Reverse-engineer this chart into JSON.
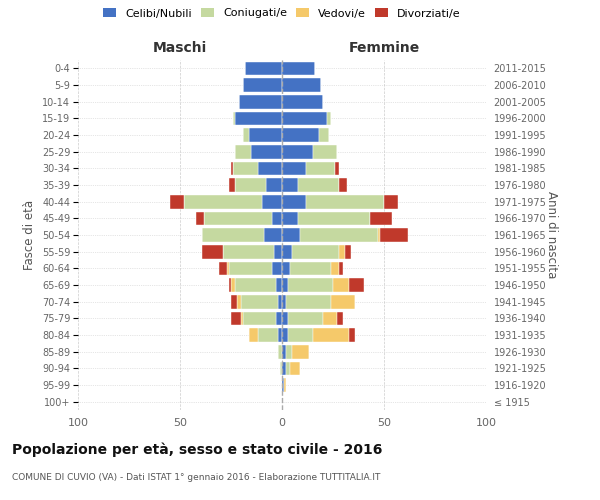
{
  "age_groups": [
    "100+",
    "95-99",
    "90-94",
    "85-89",
    "80-84",
    "75-79",
    "70-74",
    "65-69",
    "60-64",
    "55-59",
    "50-54",
    "45-49",
    "40-44",
    "35-39",
    "30-34",
    "25-29",
    "20-24",
    "15-19",
    "10-14",
    "5-9",
    "0-4"
  ],
  "birth_years": [
    "≤ 1915",
    "1916-1920",
    "1921-1925",
    "1926-1930",
    "1931-1935",
    "1936-1940",
    "1941-1945",
    "1946-1950",
    "1951-1955",
    "1956-1960",
    "1961-1965",
    "1966-1970",
    "1971-1975",
    "1976-1980",
    "1981-1985",
    "1986-1990",
    "1991-1995",
    "1996-2000",
    "2001-2005",
    "2006-2010",
    "2011-2015"
  ],
  "colors": {
    "celibi": "#4472c4",
    "coniugati": "#c5d9a0",
    "vedovi": "#f5c96a",
    "divorziati": "#c0392b"
  },
  "males": {
    "celibi": [
      0,
      0,
      0,
      0,
      2,
      3,
      2,
      3,
      5,
      4,
      9,
      5,
      10,
      8,
      12,
      15,
      16,
      23,
      21,
      19,
      18
    ],
    "coniugati": [
      0,
      0,
      1,
      2,
      10,
      16,
      18,
      20,
      21,
      25,
      30,
      33,
      38,
      15,
      12,
      8,
      3,
      1,
      0,
      0,
      0
    ],
    "vedovi": [
      0,
      0,
      0,
      0,
      4,
      1,
      2,
      2,
      1,
      0,
      0,
      0,
      0,
      0,
      0,
      0,
      0,
      0,
      0,
      0,
      0
    ],
    "divorziati": [
      0,
      0,
      0,
      0,
      0,
      5,
      3,
      1,
      4,
      10,
      0,
      4,
      7,
      3,
      1,
      0,
      0,
      0,
      0,
      0,
      0
    ]
  },
  "females": {
    "celibi": [
      0,
      1,
      2,
      2,
      3,
      3,
      2,
      3,
      4,
      5,
      9,
      8,
      12,
      8,
      12,
      15,
      18,
      22,
      20,
      19,
      16
    ],
    "coniugati": [
      0,
      0,
      2,
      3,
      12,
      17,
      22,
      22,
      20,
      23,
      38,
      35,
      38,
      20,
      14,
      12,
      5,
      2,
      0,
      0,
      0
    ],
    "vedovi": [
      0,
      1,
      5,
      8,
      18,
      7,
      12,
      8,
      4,
      3,
      1,
      0,
      0,
      0,
      0,
      0,
      0,
      0,
      0,
      0,
      0
    ],
    "divorziati": [
      0,
      0,
      0,
      0,
      3,
      3,
      0,
      7,
      2,
      3,
      14,
      11,
      7,
      4,
      2,
      0,
      0,
      0,
      0,
      0,
      0
    ]
  },
  "title": "Popolazione per età, sesso e stato civile - 2016",
  "subtitle": "COMUNE DI CUVIO (VA) - Dati ISTAT 1° gennaio 2016 - Elaborazione TUTTITALIA.IT",
  "xlabel_left": "Maschi",
  "xlabel_right": "Femmine",
  "ylabel_left": "Fasce di età",
  "ylabel_right": "Anni di nascita",
  "xlim": 100,
  "background_color": "#ffffff",
  "grid_color": "#cccccc",
  "legend_labels": [
    "Celibi/Nubili",
    "Coniugati/e",
    "Vedovi/e",
    "Divorziati/e"
  ]
}
